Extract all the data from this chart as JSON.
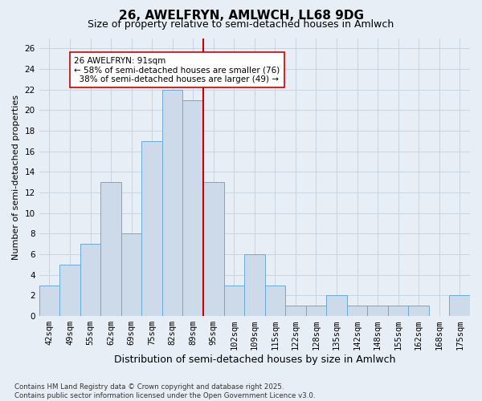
{
  "title_line1": "26, AWELFRYN, AMLWCH, LL68 9DG",
  "title_line2": "Size of property relative to semi-detached houses in Amlwch",
  "xlabel": "Distribution of semi-detached houses by size in Amlwch",
  "ylabel": "Number of semi-detached properties",
  "categories": [
    "42sqm",
    "49sqm",
    "55sqm",
    "62sqm",
    "69sqm",
    "75sqm",
    "82sqm",
    "89sqm",
    "95sqm",
    "102sqm",
    "109sqm",
    "115sqm",
    "122sqm",
    "128sqm",
    "135sqm",
    "142sqm",
    "148sqm",
    "155sqm",
    "162sqm",
    "168sqm",
    "175sqm"
  ],
  "values": [
    3,
    5,
    7,
    13,
    8,
    17,
    22,
    21,
    13,
    3,
    6,
    3,
    1,
    1,
    2,
    1,
    1,
    1,
    1,
    0,
    2
  ],
  "bar_color": "#ccdaea",
  "bar_edge_color": "#6aaad4",
  "vline_color": "#cc0000",
  "vline_x_index": 8.5,
  "ylim": [
    0,
    27
  ],
  "yticks": [
    0,
    2,
    4,
    6,
    8,
    10,
    12,
    14,
    16,
    18,
    20,
    22,
    24,
    26
  ],
  "background_color": "#e8eef5",
  "grid_color": "#c8d4e0",
  "annotation_box_color": "#ffffff",
  "annotation_box_edge": "#cc0000",
  "property_size_label": "26 AWELFRYN: 91sqm",
  "pct_smaller": 58,
  "num_smaller": 76,
  "pct_larger": 38,
  "num_larger": 49,
  "footer_line1": "Contains HM Land Registry data © Crown copyright and database right 2025.",
  "footer_line2": "Contains public sector information licensed under the Open Government Licence v3.0.",
  "title_fontsize": 11,
  "subtitle_fontsize": 9,
  "ylabel_fontsize": 8,
  "xlabel_fontsize": 9,
  "tick_fontsize": 7.5,
  "annotation_fontsize": 7.5,
  "footer_fontsize": 6.2
}
